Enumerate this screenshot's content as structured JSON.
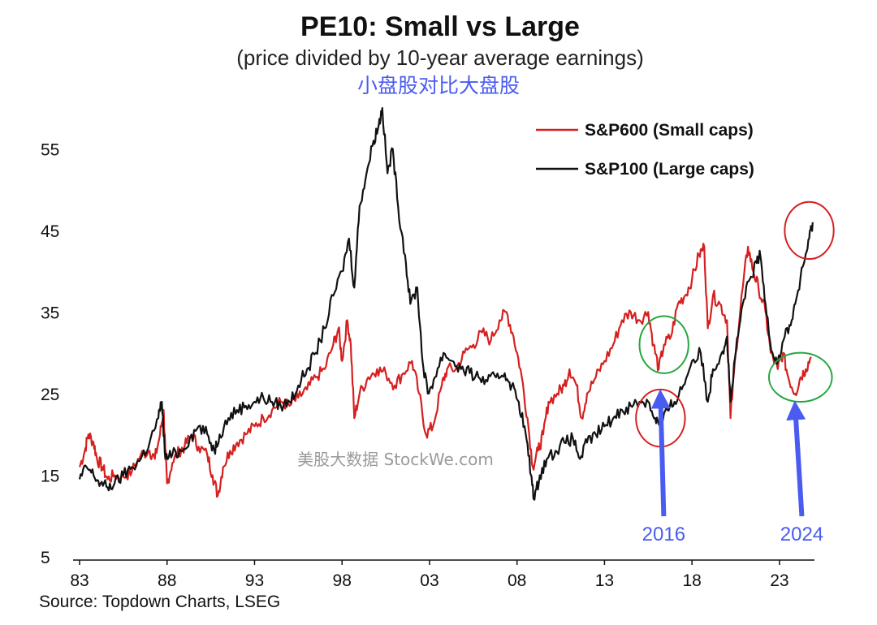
{
  "chart_data": {
    "type": "line",
    "title": "PE10: Small vs Large",
    "subtitle": "(price divided by 10-year average earnings)",
    "annotation_cn": "小盘股对比大盘股",
    "source": "Source: Topdown Charts, LSEG",
    "watermark": "美股大数据 StockWe.com",
    "xlim": [
      1983,
      2025
    ],
    "ylim": [
      5,
      62
    ],
    "x_ticks": [
      {
        "value": 1983,
        "label": "83"
      },
      {
        "value": 1988,
        "label": "88"
      },
      {
        "value": 1993,
        "label": "93"
      },
      {
        "value": 1998,
        "label": "98"
      },
      {
        "value": 2003,
        "label": "03"
      },
      {
        "value": 2008,
        "label": "08"
      },
      {
        "value": 2013,
        "label": "13"
      },
      {
        "value": 2018,
        "label": "18"
      },
      {
        "value": 2023,
        "label": "23"
      }
    ],
    "y_ticks": [
      {
        "value": 5,
        "label": "5"
      },
      {
        "value": 15,
        "label": "15"
      },
      {
        "value": 25,
        "label": "25"
      },
      {
        "value": 35,
        "label": "35"
      },
      {
        "value": 45,
        "label": "45"
      },
      {
        "value": 55,
        "label": "55"
      }
    ],
    "grid": false,
    "legend_position": "top-right",
    "series": [
      {
        "name": "S&P600 (Small caps)",
        "color": "#d62020",
        "points": [
          [
            1983.0,
            16
          ],
          [
            1983.3,
            18
          ],
          [
            1983.5,
            20
          ],
          [
            1983.8,
            19
          ],
          [
            1984.0,
            17
          ],
          [
            1984.3,
            16
          ],
          [
            1984.6,
            14.5
          ],
          [
            1985.0,
            15
          ],
          [
            1985.5,
            14.8
          ],
          [
            1986.0,
            15.5
          ],
          [
            1986.5,
            17.5
          ],
          [
            1987.0,
            18
          ],
          [
            1987.3,
            17
          ],
          [
            1987.6,
            20
          ],
          [
            1987.8,
            23
          ],
          [
            1987.9,
            18
          ],
          [
            1988.0,
            14
          ],
          [
            1988.3,
            16.5
          ],
          [
            1988.7,
            18
          ],
          [
            1989.0,
            18.5
          ],
          [
            1989.4,
            20
          ],
          [
            1989.8,
            18.5
          ],
          [
            1990.3,
            17.5
          ],
          [
            1990.6,
            15
          ],
          [
            1990.9,
            12.5
          ],
          [
            1991.2,
            16
          ],
          [
            1991.6,
            18
          ],
          [
            1992.0,
            19
          ],
          [
            1992.5,
            20
          ],
          [
            1993.0,
            21
          ],
          [
            1993.5,
            22
          ],
          [
            1994.0,
            23
          ],
          [
            1994.5,
            24
          ],
          [
            1995.0,
            23.5
          ],
          [
            1995.5,
            24.5
          ],
          [
            1996.0,
            25.5
          ],
          [
            1996.5,
            27
          ],
          [
            1997.0,
            28
          ],
          [
            1997.5,
            31
          ],
          [
            1997.8,
            33
          ],
          [
            1998.0,
            29
          ],
          [
            1998.3,
            34
          ],
          [
            1998.5,
            31
          ],
          [
            1998.7,
            22
          ],
          [
            1999.0,
            25
          ],
          [
            1999.5,
            27
          ],
          [
            2000.0,
            28
          ],
          [
            2000.5,
            27.5
          ],
          [
            2001.0,
            26
          ],
          [
            2001.5,
            27.5
          ],
          [
            2002.0,
            29
          ],
          [
            2002.4,
            25
          ],
          [
            2002.8,
            20
          ],
          [
            2003.2,
            21
          ],
          [
            2003.7,
            26
          ],
          [
            2004.0,
            28
          ],
          [
            2004.5,
            28
          ],
          [
            2005.0,
            30
          ],
          [
            2005.5,
            31
          ],
          [
            2006.0,
            32.5
          ],
          [
            2006.5,
            31.5
          ],
          [
            2007.0,
            34
          ],
          [
            2007.4,
            35
          ],
          [
            2007.8,
            32
          ],
          [
            2008.2,
            28
          ],
          [
            2008.6,
            22
          ],
          [
            2008.9,
            16
          ],
          [
            2009.2,
            18
          ],
          [
            2009.5,
            20
          ],
          [
            2009.8,
            24
          ],
          [
            2010.3,
            25
          ],
          [
            2010.7,
            26
          ],
          [
            2011.0,
            28
          ],
          [
            2011.4,
            26
          ],
          [
            2011.7,
            22
          ],
          [
            2012.0,
            25
          ],
          [
            2012.5,
            27
          ],
          [
            2013.0,
            29
          ],
          [
            2013.5,
            31
          ],
          [
            2014.0,
            34
          ],
          [
            2014.5,
            35
          ],
          [
            2015.0,
            34
          ],
          [
            2015.5,
            35
          ],
          [
            2015.8,
            31
          ],
          [
            2016.1,
            28
          ],
          [
            2016.4,
            31
          ],
          [
            2016.8,
            32
          ],
          [
            2017.2,
            36
          ],
          [
            2017.6,
            37
          ],
          [
            2018.0,
            39
          ],
          [
            2018.4,
            42
          ],
          [
            2018.7,
            43
          ],
          [
            2018.9,
            33
          ],
          [
            2019.2,
            37
          ],
          [
            2019.6,
            36
          ],
          [
            2020.0,
            34
          ],
          [
            2020.2,
            22
          ],
          [
            2020.5,
            30
          ],
          [
            2020.9,
            38
          ],
          [
            2021.2,
            43
          ],
          [
            2021.5,
            40
          ],
          [
            2021.8,
            38
          ],
          [
            2022.2,
            35
          ],
          [
            2022.5,
            30
          ],
          [
            2022.9,
            28
          ],
          [
            2023.2,
            30
          ],
          [
            2023.5,
            27
          ],
          [
            2023.9,
            25
          ],
          [
            2024.2,
            27
          ],
          [
            2024.5,
            28
          ],
          [
            2024.8,
            29.5
          ]
        ]
      },
      {
        "name": "S&P100 (Large caps)",
        "color": "#111111",
        "points": [
          [
            1983.0,
            14.5
          ],
          [
            1983.4,
            16
          ],
          [
            1983.8,
            15
          ],
          [
            1984.2,
            14
          ],
          [
            1984.6,
            13.5
          ],
          [
            1985.0,
            14
          ],
          [
            1985.5,
            15
          ],
          [
            1986.0,
            16
          ],
          [
            1986.5,
            17
          ],
          [
            1987.0,
            19
          ],
          [
            1987.5,
            22
          ],
          [
            1987.7,
            24
          ],
          [
            1987.9,
            17
          ],
          [
            1988.3,
            17.5
          ],
          [
            1988.8,
            18
          ],
          [
            1989.3,
            19.5
          ],
          [
            1989.8,
            21
          ],
          [
            1990.3,
            20
          ],
          [
            1990.7,
            18
          ],
          [
            1991.0,
            20
          ],
          [
            1991.5,
            22
          ],
          [
            1992.0,
            23
          ],
          [
            1992.5,
            23.5
          ],
          [
            1993.0,
            24
          ],
          [
            1993.5,
            24.5
          ],
          [
            1994.0,
            24
          ],
          [
            1994.5,
            23.5
          ],
          [
            1995.0,
            24
          ],
          [
            1995.5,
            26
          ],
          [
            1996.0,
            28
          ],
          [
            1996.5,
            30
          ],
          [
            1997.0,
            33
          ],
          [
            1997.5,
            37
          ],
          [
            1998.0,
            40
          ],
          [
            1998.4,
            44
          ],
          [
            1998.7,
            38
          ],
          [
            1999.0,
            48
          ],
          [
            1999.4,
            52
          ],
          [
            1999.8,
            56
          ],
          [
            2000.1,
            58
          ],
          [
            2000.3,
            60
          ],
          [
            2000.6,
            52
          ],
          [
            2000.9,
            55
          ],
          [
            2001.2,
            48
          ],
          [
            2001.6,
            42
          ],
          [
            2001.9,
            36
          ],
          [
            2002.3,
            38
          ],
          [
            2002.6,
            29
          ],
          [
            2002.9,
            25
          ],
          [
            2003.3,
            27
          ],
          [
            2003.8,
            30
          ],
          [
            2004.3,
            29
          ],
          [
            2004.8,
            28
          ],
          [
            2005.3,
            27.5
          ],
          [
            2005.8,
            27
          ],
          [
            2006.3,
            26.5
          ],
          [
            2006.8,
            27
          ],
          [
            2007.3,
            27.5
          ],
          [
            2007.7,
            26
          ],
          [
            2008.1,
            24
          ],
          [
            2008.5,
            20
          ],
          [
            2008.8,
            15
          ],
          [
            2009.0,
            12
          ],
          [
            2009.3,
            15
          ],
          [
            2009.7,
            17
          ],
          [
            2010.2,
            18
          ],
          [
            2010.7,
            19
          ],
          [
            2011.2,
            19.5
          ],
          [
            2011.6,
            17
          ],
          [
            2012.0,
            19
          ],
          [
            2012.5,
            20
          ],
          [
            2013.0,
            21
          ],
          [
            2013.5,
            22
          ],
          [
            2014.0,
            23
          ],
          [
            2014.5,
            23.5
          ],
          [
            2015.0,
            24
          ],
          [
            2015.5,
            24
          ],
          [
            2015.9,
            22
          ],
          [
            2016.2,
            21
          ],
          [
            2016.6,
            23
          ],
          [
            2017.0,
            24
          ],
          [
            2017.5,
            26
          ],
          [
            2018.0,
            29
          ],
          [
            2018.5,
            30
          ],
          [
            2018.9,
            24
          ],
          [
            2019.2,
            28
          ],
          [
            2019.7,
            30
          ],
          [
            2020.0,
            32
          ],
          [
            2020.2,
            24
          ],
          [
            2020.5,
            30
          ],
          [
            2020.9,
            36
          ],
          [
            2021.3,
            39
          ],
          [
            2021.7,
            41
          ],
          [
            2021.9,
            42
          ],
          [
            2022.2,
            36
          ],
          [
            2022.6,
            30
          ],
          [
            2022.9,
            29
          ],
          [
            2023.3,
            32
          ],
          [
            2023.7,
            34
          ],
          [
            2024.0,
            37
          ],
          [
            2024.4,
            41
          ],
          [
            2024.7,
            44
          ],
          [
            2024.9,
            46
          ]
        ]
      }
    ],
    "annotations": [
      {
        "label": "2016",
        "x": 2016.2,
        "y": 8
      },
      {
        "label": "2024",
        "x": 2024.0,
        "y": 8
      }
    ],
    "highlights": [
      {
        "color": "#26a641",
        "cx": 2016.4,
        "cy": 31,
        "rx": 1.4,
        "ry": 3.5
      },
      {
        "color": "#d62020",
        "cx": 2016.2,
        "cy": 22,
        "rx": 1.4,
        "ry": 3.5
      },
      {
        "color": "#d62020",
        "cx": 2024.7,
        "cy": 45,
        "rx": 1.4,
        "ry": 3.5
      },
      {
        "color": "#26a641",
        "cx": 2024.2,
        "cy": 27,
        "rx": 1.8,
        "ry": 3.0
      }
    ]
  }
}
